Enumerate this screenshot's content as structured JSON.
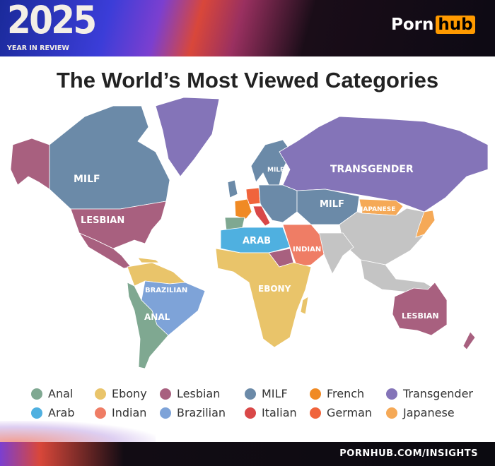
{
  "header": {
    "year": "2025",
    "subtitle": "YEAR IN REVIEW",
    "logo_left": "Porn",
    "logo_right": "hub"
  },
  "title": "The World’s Most Viewed Categories",
  "colors": {
    "Anal": "#7fa891",
    "Ebony": "#e9c46a",
    "Lesbian": "#a8607f",
    "MILF": "#6b8aa8",
    "French": "#f08a24",
    "Transgender": "#8474b8",
    "Arab": "#4fb0e0",
    "Indian": "#ef7d65",
    "Brazilian": "#7ea3d8",
    "Italian": "#d94848",
    "German": "#f0643c",
    "Japanese": "#f5a957",
    "none": "#c4c4c4"
  },
  "map_labels": {
    "milf_na": "MILF",
    "lesbian_us": "LESBIAN",
    "milf_scand": "MILF",
    "transgender": "TRANSGENDER",
    "milf_asia": "MILF",
    "japanese": "JAPANESE",
    "arab": "ARAB",
    "indian": "INDIAN",
    "ebony": "EBONY",
    "brazilian": "BRAZILIAN",
    "anal": "ANAL",
    "lesbian_au": "LESBIAN"
  },
  "legend": [
    {
      "label": "Anal",
      "color": "#7fa891"
    },
    {
      "label": "Ebony",
      "color": "#e9c46a"
    },
    {
      "label": "Lesbian",
      "color": "#a8607f"
    },
    {
      "label": "MILF",
      "color": "#6b8aa8"
    },
    {
      "label": "French",
      "color": "#f08a24"
    },
    {
      "label": "Transgender",
      "color": "#8474b8"
    },
    {
      "label": "Arab",
      "color": "#4fb0e0"
    },
    {
      "label": "Indian",
      "color": "#ef7d65"
    },
    {
      "label": "Brazilian",
      "color": "#7ea3d8"
    },
    {
      "label": "Italian",
      "color": "#d94848"
    },
    {
      "label": "German",
      "color": "#f0643c"
    },
    {
      "label": "Japanese",
      "color": "#f5a957"
    }
  ],
  "footer": "PORNHUB.COM/INSIGHTS"
}
